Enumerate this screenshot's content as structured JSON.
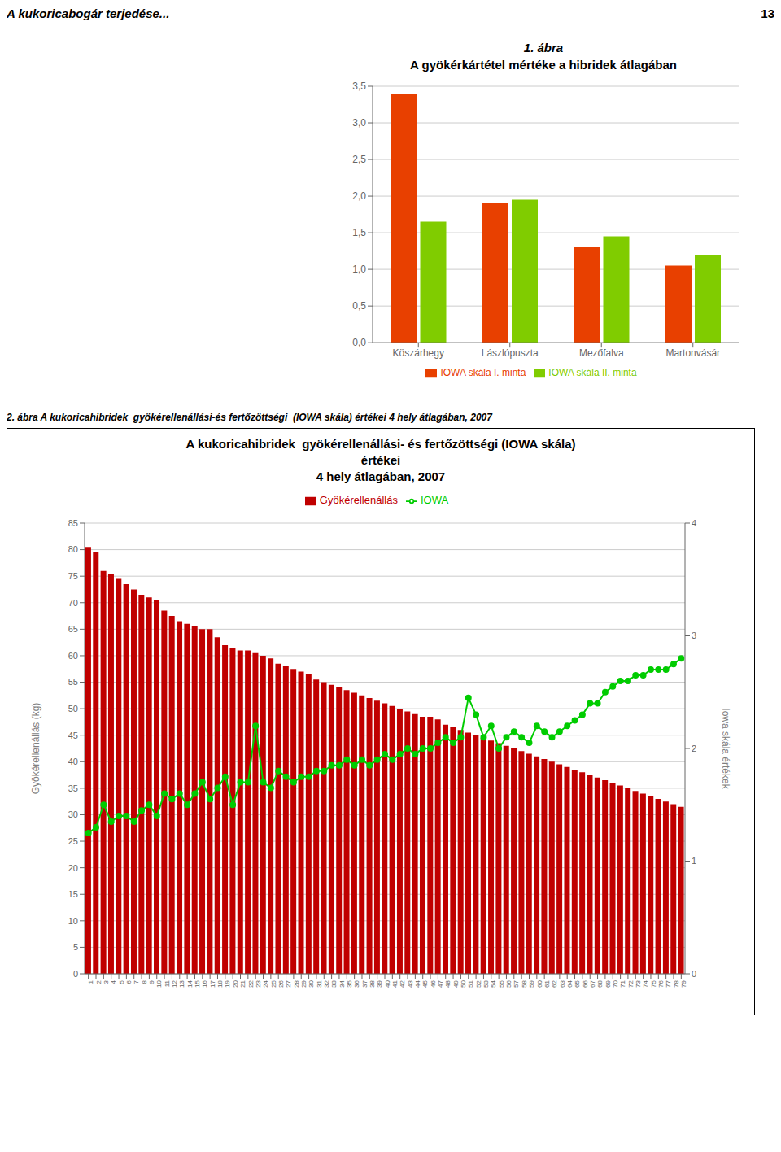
{
  "header": {
    "left": "A kukoricabogár terjedése...",
    "right": "13"
  },
  "chart_data": [
    {
      "type": "bar",
      "title": "1. ábra",
      "subtitle": "A gyökérkártétel mértéke a hibridek átlagában",
      "categories": [
        "Köszárhegy",
        "Lászlópuszta",
        "Mezőfalva",
        "Martonvásár"
      ],
      "series": [
        {
          "name": "IOWA skála I. minta",
          "color": "#e84000",
          "values": [
            3.4,
            1.9,
            1.3,
            1.05
          ]
        },
        {
          "name": "IOWA skála II. minta",
          "color": "#80cc00",
          "values": [
            1.65,
            1.95,
            1.45,
            1.2
          ]
        }
      ],
      "ylim": [
        0,
        3.5
      ],
      "yticks": [
        {
          "value": 0.0,
          "label": "0,0"
        },
        {
          "value": 0.5,
          "label": "0,5"
        },
        {
          "value": 1.0,
          "label": "1,0"
        },
        {
          "value": 1.5,
          "label": "1,5"
        },
        {
          "value": 2.0,
          "label": "2,0"
        },
        {
          "value": 2.5,
          "label": "2,5"
        },
        {
          "value": 3.0,
          "label": "3,0"
        },
        {
          "value": 3.5,
          "label": "3,5"
        }
      ],
      "grid": true,
      "legend": "bottom"
    },
    {
      "type": "bar",
      "caption": "2. ábra A kukoricahibridek  gyökérellenállási-és fertőzöttségi  (IOWA skála) értékei 4 hely átlagában, 2007",
      "title": [
        "A kukoricahibridek  gyökérellenállási- és fertőzöttségi (IOWA skála)",
        "értékei",
        "4 hely átlagában, 2007"
      ],
      "categories": [
        "1",
        "2",
        "3",
        "4",
        "5",
        "6",
        "7",
        "8",
        "9",
        "10",
        "11",
        "12",
        "13",
        "14",
        "15",
        "16",
        "17",
        "18",
        "19",
        "20",
        "21",
        "22",
        "23",
        "24",
        "25",
        "26",
        "27",
        "28",
        "29",
        "30",
        "31",
        "32",
        "33",
        "34",
        "35",
        "36",
        "37",
        "38",
        "39",
        "40",
        "41",
        "42",
        "43",
        "44",
        "45",
        "46",
        "47",
        "48",
        "49",
        "50",
        "51",
        "52",
        "53",
        "54",
        "55",
        "56",
        "57",
        "58",
        "59",
        "60",
        "61",
        "62",
        "63",
        "64",
        "65",
        "66",
        "67",
        "68",
        "69",
        "70",
        "71",
        "72",
        "73",
        "74",
        "75",
        "76",
        "77",
        "78",
        "79"
      ],
      "series": [
        {
          "name": "Gyökérellenállás",
          "type": "bar",
          "color": "#c00000",
          "values": [
            80.5,
            79.5,
            76.0,
            75.5,
            74.5,
            73.5,
            72.5,
            71.5,
            71.0,
            70.5,
            68.5,
            67.5,
            66.5,
            66.0,
            65.5,
            65.0,
            65.0,
            63.5,
            62.0,
            61.5,
            61.0,
            61.0,
            60.5,
            60.0,
            59.5,
            58.5,
            58.0,
            57.5,
            57.0,
            56.5,
            55.5,
            55.0,
            54.5,
            54.0,
            53.5,
            53.0,
            52.5,
            52.0,
            51.5,
            51.0,
            50.5,
            50.0,
            49.5,
            49.0,
            48.5,
            48.5,
            48.0,
            47.0,
            46.5,
            46.0,
            45.5,
            45.0,
            44.5,
            44.0,
            43.5,
            43.0,
            42.5,
            42.0,
            41.5,
            41.0,
            40.5,
            40.0,
            39.5,
            39.0,
            38.5,
            38.0,
            37.5,
            37.0,
            36.5,
            36.0,
            35.5,
            35.0,
            34.5,
            34.0,
            33.5,
            33.0,
            32.5,
            32.0,
            31.5
          ]
        },
        {
          "name": "IOWA",
          "type": "line",
          "color": "#00cc00",
          "axis": "y2",
          "marker": "circle",
          "values": [
            1.25,
            1.3,
            1.5,
            1.35,
            1.4,
            1.4,
            1.35,
            1.45,
            1.5,
            1.4,
            1.6,
            1.55,
            1.6,
            1.5,
            1.6,
            1.7,
            1.55,
            1.65,
            1.75,
            1.5,
            1.7,
            1.7,
            2.2,
            1.7,
            1.65,
            1.8,
            1.75,
            1.7,
            1.75,
            1.75,
            1.8,
            1.8,
            1.85,
            1.85,
            1.9,
            1.85,
            1.9,
            1.85,
            1.9,
            1.95,
            1.9,
            1.95,
            2.0,
            1.95,
            2.0,
            2.0,
            2.05,
            2.1,
            2.05,
            2.1,
            2.45,
            2.3,
            2.1,
            2.2,
            2.0,
            2.1,
            2.15,
            2.1,
            2.05,
            2.2,
            2.15,
            2.1,
            2.15,
            2.2,
            2.25,
            2.3,
            2.4,
            2.4,
            2.5,
            2.55,
            2.6,
            2.6,
            2.65,
            2.65,
            2.7,
            2.7,
            2.7,
            2.75,
            2.8
          ]
        }
      ],
      "ylim": [
        0,
        85
      ],
      "yticks": [
        0,
        5,
        10,
        15,
        20,
        25,
        30,
        35,
        40,
        45,
        50,
        55,
        60,
        65,
        70,
        75,
        80,
        85
      ],
      "y2lim": [
        0,
        4
      ],
      "y2ticks": [
        0,
        1,
        2,
        3,
        4
      ],
      "ylabel": "Gyökérellenállás (kg)",
      "y2label": "Iowa skála értékek",
      "grid": true,
      "legend": "top"
    }
  ]
}
